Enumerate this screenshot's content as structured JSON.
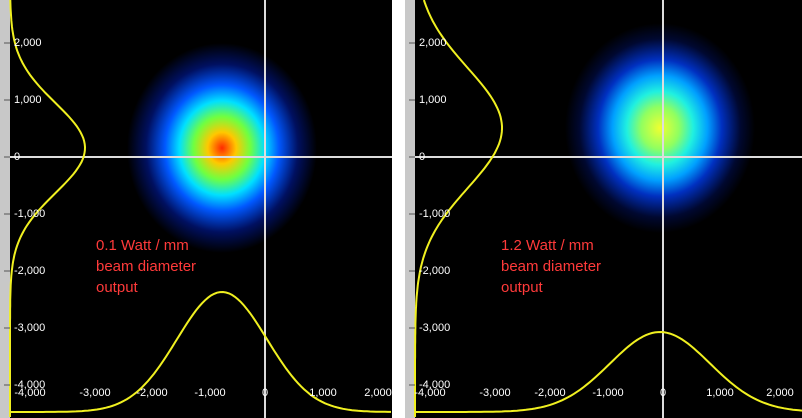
{
  "panels": [
    {
      "annotation": [
        "0.1 Watt / mm",
        "beam diameter",
        "output"
      ],
      "y_ticks": [
        "2,000",
        "1,000",
        "0",
        "-1,000",
        "-2,000",
        "-3,000",
        "-4,000"
      ],
      "x_ticks": [
        "-4,000",
        "-3,000",
        "-2,000",
        "-1,000",
        "0",
        "1,000",
        "2,000"
      ]
    },
    {
      "annotation": [
        "1.2 Watt / mm",
        "beam diameter",
        "output"
      ],
      "y_ticks": [
        "2,000",
        "1,000",
        "0",
        "-1,000",
        "-2,000",
        "-3,000",
        "-4,000"
      ],
      "x_ticks": [
        "-4,000",
        "-3,000",
        "-2,000",
        "-1,000",
        "0",
        "1,000",
        "2,000"
      ]
    }
  ]
}
